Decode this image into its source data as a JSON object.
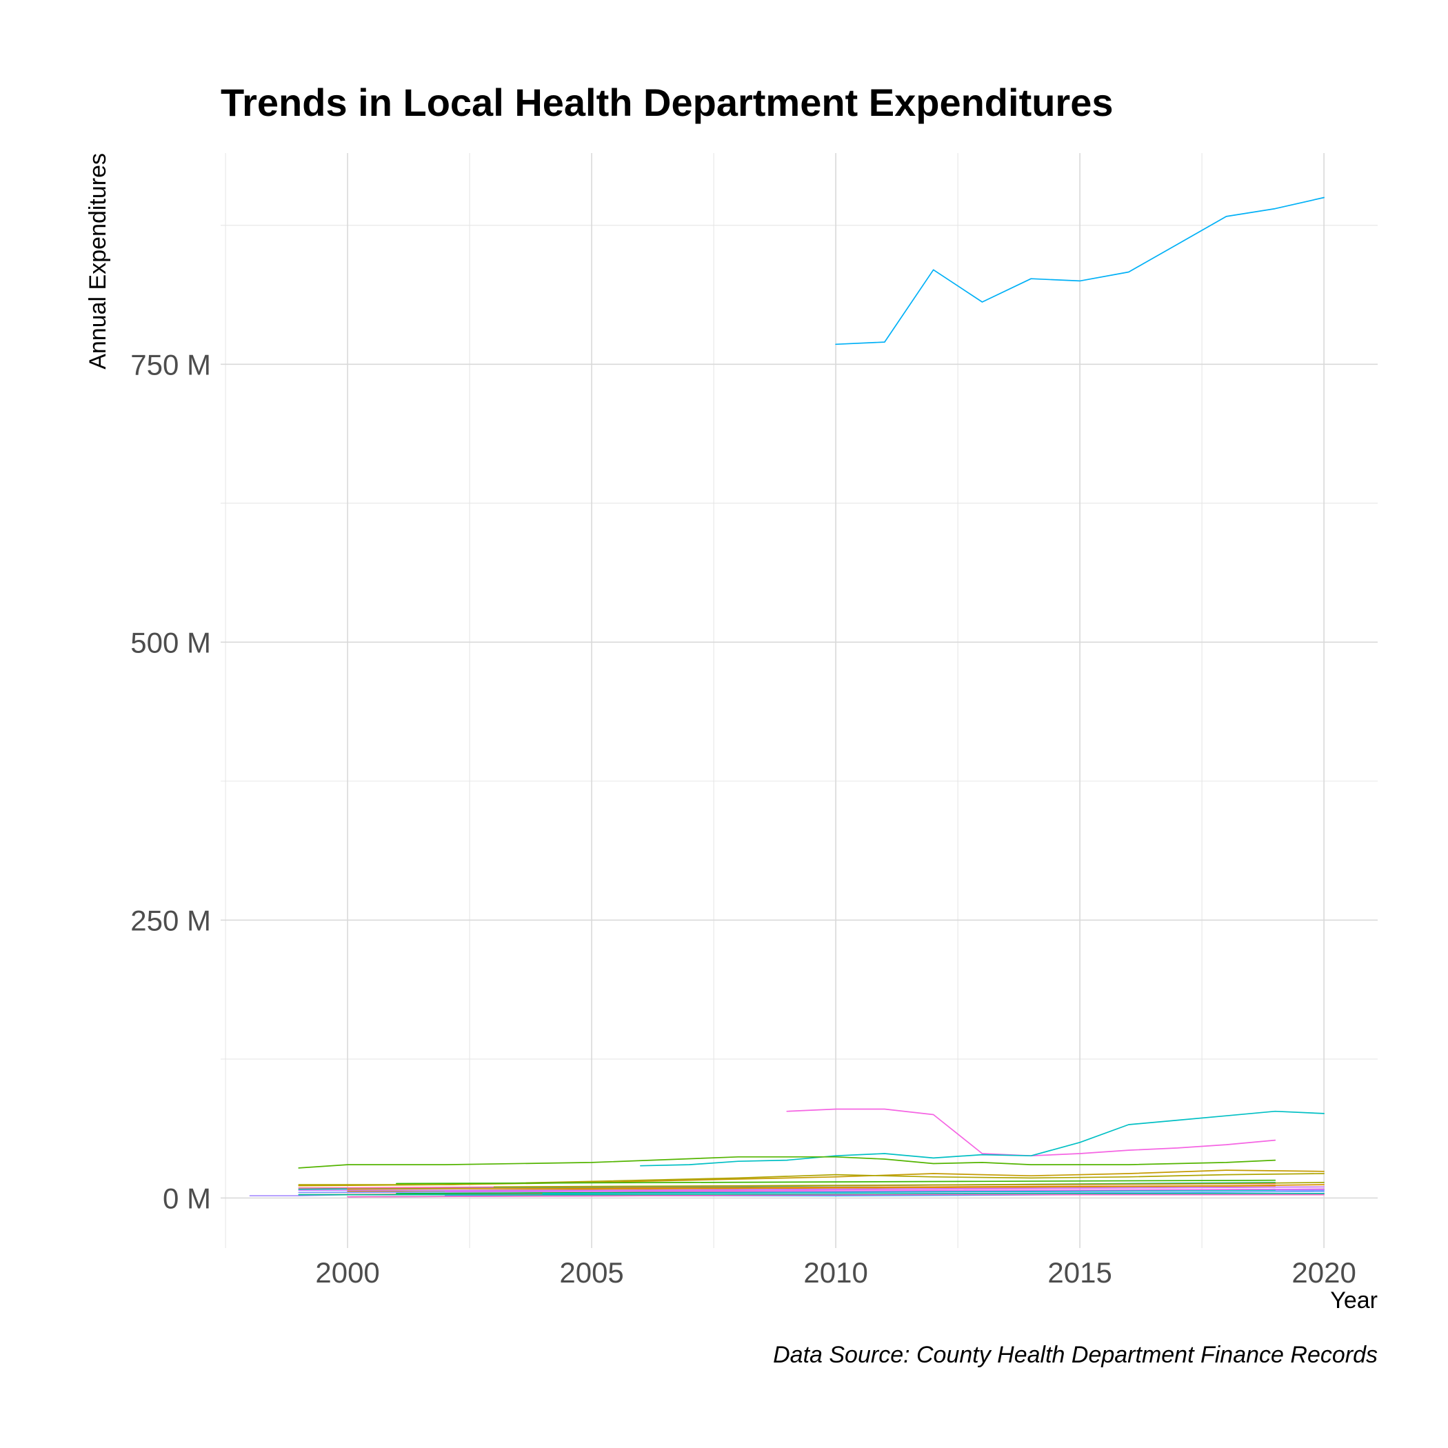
{
  "chart_data": {
    "type": "line",
    "title": "Trends in Local Health Department Expenditures",
    "xlabel": "Year",
    "ylabel": "Annual Expenditures",
    "caption": "Data Source: County Health Department Finance Records",
    "xlim": [
      1997.4,
      2021.1
    ],
    "ylim": [
      -45,
      940
    ],
    "x_ticks": [
      2000,
      2005,
      2010,
      2015,
      2020
    ],
    "y_ticks": [
      0,
      250,
      500,
      750
    ],
    "y_tick_labels": [
      "0 M",
      "250 M",
      "500 M",
      "750 M"
    ],
    "y_unit": "millions",
    "grid": true,
    "legend": "none",
    "series": [
      {
        "color": "#00b0f6",
        "x": [
          2010,
          2011,
          2012,
          2013,
          2014,
          2015,
          2016,
          2017,
          2018,
          2019,
          2020
        ],
        "values": [
          768,
          770,
          835,
          806,
          827,
          825,
          833,
          858,
          883,
          890,
          900
        ]
      },
      {
        "color": "#f564e3",
        "x": [
          2009,
          2010,
          2011,
          2012,
          2013,
          2014,
          2015,
          2016,
          2017,
          2018,
          2019
        ],
        "values": [
          78,
          80,
          80,
          75,
          40,
          38,
          40,
          43,
          45,
          48,
          52
        ]
      },
      {
        "color": "#00bfc4",
        "x": [
          2006,
          2007,
          2008,
          2009,
          2010,
          2011,
          2012,
          2013,
          2014,
          2015,
          2016,
          2017,
          2018,
          2019,
          2020
        ],
        "values": [
          29,
          30,
          33,
          34,
          38,
          40,
          36,
          39,
          38,
          50,
          66,
          70,
          74,
          78,
          76
        ]
      },
      {
        "color": "#53b400",
        "x": [
          1999,
          2000,
          2002,
          2005,
          2008,
          2010,
          2011,
          2012,
          2013,
          2014,
          2016,
          2018,
          2019
        ],
        "values": [
          27,
          30,
          30,
          32,
          37,
          37,
          35,
          31,
          32,
          30,
          30,
          32,
          34
        ]
      },
      {
        "color": "#a58aff",
        "x": [
          1998,
          1999,
          2000,
          2005,
          2010,
          2015,
          2018,
          2019
        ],
        "values": [
          2,
          2,
          3,
          4,
          5,
          6,
          7,
          8
        ]
      },
      {
        "color": "#c49a00",
        "x": [
          1999,
          2002,
          2005,
          2008,
          2010,
          2012,
          2014,
          2016,
          2018,
          2020
        ],
        "values": [
          11,
          12,
          14,
          17,
          19,
          22,
          20,
          22,
          25,
          24
        ]
      },
      {
        "color": "#aea400",
        "x": [
          1999,
          2002,
          2005,
          2008,
          2010,
          2012,
          2014,
          2016,
          2018,
          2020
        ],
        "values": [
          12,
          12,
          15,
          18,
          21,
          19,
          18,
          19,
          21,
          22
        ]
      },
      {
        "color": "#00c094",
        "x": [
          1999,
          2003,
          2007,
          2010,
          2013,
          2016,
          2019
        ],
        "values": [
          8,
          9,
          10,
          11,
          12,
          13,
          14
        ]
      },
      {
        "color": "#fb61d7",
        "x": [
          2000,
          2004,
          2008,
          2012,
          2016,
          2020
        ],
        "values": [
          5,
          6,
          7,
          8,
          9,
          10
        ]
      },
      {
        "color": "#f8766d",
        "x": [
          1999,
          2003,
          2007,
          2011,
          2015,
          2020
        ],
        "values": [
          3,
          4,
          5,
          6,
          7,
          8
        ]
      },
      {
        "color": "#00a9ff",
        "x": [
          2000,
          2005,
          2010,
          2015,
          2020
        ],
        "values": [
          1,
          2,
          2,
          3,
          4
        ]
      },
      {
        "color": "#e58700",
        "x": [
          2000,
          2005,
          2010,
          2015,
          2019
        ],
        "values": [
          6,
          8,
          9,
          10,
          11
        ]
      },
      {
        "color": "#00ba38",
        "x": [
          2001,
          2006,
          2011,
          2016,
          2020
        ],
        "values": [
          4,
          5,
          6,
          7,
          8
        ]
      },
      {
        "color": "#c77cff",
        "x": [
          1999,
          2005,
          2010,
          2015,
          2020
        ],
        "values": [
          7,
          7,
          8,
          9,
          10
        ]
      },
      {
        "color": "#619cff",
        "x": [
          2002,
          2007,
          2012,
          2017,
          2020
        ],
        "values": [
          2,
          3,
          4,
          5,
          6
        ]
      },
      {
        "color": "#ff67a4",
        "x": [
          1999,
          2004,
          2009,
          2014,
          2019
        ],
        "values": [
          9,
          10,
          11,
          12,
          13
        ]
      },
      {
        "color": "#a3a500",
        "x": [
          2003,
          2008,
          2013,
          2018,
          2020
        ],
        "values": [
          10,
          11,
          12,
          13,
          14
        ]
      },
      {
        "color": "#00c19a",
        "x": [
          1999,
          2006,
          2013,
          2020
        ],
        "values": [
          3,
          3,
          4,
          4
        ]
      },
      {
        "color": "#ff61c3",
        "x": [
          2000,
          2006,
          2012,
          2018,
          2020
        ],
        "values": [
          1,
          2,
          3,
          3,
          3
        ]
      },
      {
        "color": "#8494ff",
        "x": [
          1999,
          2005,
          2011,
          2017,
          2020
        ],
        "values": [
          5,
          6,
          6,
          7,
          7
        ]
      },
      {
        "color": "#39b600",
        "x": [
          2001,
          2007,
          2013,
          2019
        ],
        "values": [
          13,
          14,
          15,
          16
        ]
      },
      {
        "color": "#d89000",
        "x": [
          2000,
          2006,
          2012,
          2018,
          2020
        ],
        "values": [
          8,
          9,
          10,
          11,
          12
        ]
      },
      {
        "color": "#00bfc4",
        "x": [
          2004,
          2009,
          2014,
          2019
        ],
        "values": [
          4,
          5,
          6,
          7
        ]
      },
      {
        "color": "#e76bf3",
        "x": [
          2002,
          2008,
          2014,
          2020
        ],
        "values": [
          6,
          6,
          7,
          8
        ]
      }
    ]
  }
}
